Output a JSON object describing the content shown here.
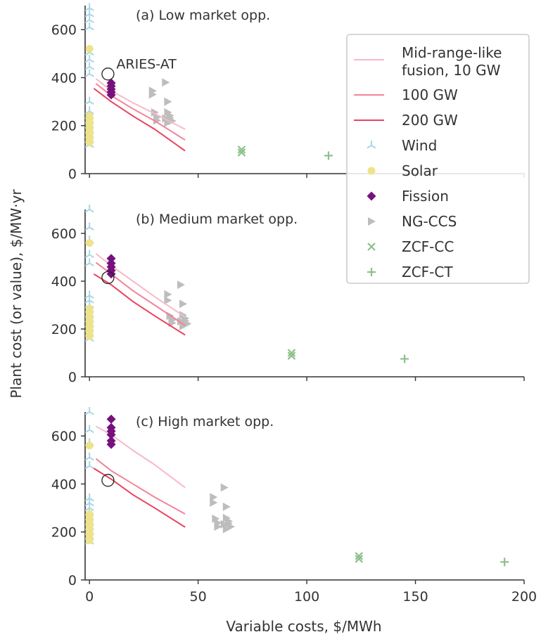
{
  "figure": {
    "ylabel": "Plant cost (or value), $/MW·yr",
    "xlabel": "Variable costs, $/MWh",
    "x_ticks": [
      0,
      50,
      100,
      150,
      200
    ],
    "y_ticks": [
      0,
      200,
      400,
      600
    ],
    "legend": [
      {
        "key": "fusion10",
        "label_lines": [
          "Mid-range-like",
          "fusion, 10 GW"
        ],
        "marker": "line",
        "color": "#f8b9c8"
      },
      {
        "key": "fusion100",
        "label_lines": [
          "100 GW"
        ],
        "marker": "line",
        "color": "#f28499"
      },
      {
        "key": "fusion200",
        "label_lines": [
          "200 GW"
        ],
        "marker": "line",
        "color": "#e8435e"
      },
      {
        "key": "wind",
        "label_lines": [
          "Wind"
        ],
        "marker": "tri",
        "color": "#a8d6e6"
      },
      {
        "key": "solar",
        "label_lines": [
          "Solar"
        ],
        "marker": "circle",
        "color": "#efe38a"
      },
      {
        "key": "fission",
        "label_lines": [
          "Fission"
        ],
        "marker": "diamond",
        "color": "#77117e"
      },
      {
        "key": "ngccs",
        "label_lines": [
          "NG-CCS"
        ],
        "marker": "triright",
        "color": "#bdbdbd"
      },
      {
        "key": "zcfcc",
        "label_lines": [
          "ZCF-CC"
        ],
        "marker": "x",
        "color": "#8cc08a"
      },
      {
        "key": "zcfct",
        "label_lines": [
          "ZCF-CT"
        ],
        "marker": "plus",
        "color": "#8cc08a"
      }
    ]
  },
  "chart_data": [
    {
      "type": "scatter",
      "title": "(a) Low market opp.",
      "xlim": [
        -2,
        200
      ],
      "ylim": [
        0,
        700
      ],
      "annotation": {
        "text": "ARIES-AT",
        "x": 8.5,
        "y": 415
      },
      "fusion_lines": [
        {
          "key": "fusion10",
          "x": [
            3,
            10,
            20,
            30,
            44
          ],
          "y": [
            395,
            345,
            295,
            250,
            185
          ]
        },
        {
          "key": "fusion100",
          "x": [
            3,
            10,
            20,
            30,
            44
          ],
          "y": [
            375,
            325,
            270,
            220,
            140
          ]
        },
        {
          "key": "fusion200",
          "x": [
            2,
            10,
            20,
            30,
            44
          ],
          "y": [
            355,
            300,
            240,
            185,
            95
          ]
        }
      ],
      "markers": {
        "wind": {
          "x": [
            0,
            0,
            0,
            0,
            0,
            0,
            0,
            0,
            0,
            0,
            0,
            0,
            0,
            0,
            0,
            0,
            0
          ],
          "y": [
            690,
            665,
            640,
            610,
            505,
            475,
            445,
            415,
            300,
            260,
            240,
            220,
            200,
            180,
            160,
            140,
            120
          ]
        },
        "solar": {
          "x": [
            0,
            0,
            0,
            0,
            0,
            0,
            0,
            0,
            0,
            0,
            0
          ],
          "y": [
            520,
            240,
            228,
            215,
            203,
            190,
            178,
            165,
            152,
            140,
            130
          ]
        },
        "fission": {
          "x": [
            10,
            10,
            10,
            10,
            10
          ],
          "y": [
            378,
            365,
            352,
            340,
            328
          ]
        },
        "ngccs": {
          "x": [
            29,
            29,
            30,
            31,
            31,
            35,
            36,
            36,
            37,
            37,
            38,
            36,
            35
          ],
          "y": [
            345,
            330,
            255,
            235,
            222,
            380,
            300,
            255,
            242,
            232,
            220,
            212,
            230
          ]
        },
        "zcfcc": {
          "x": [
            70,
            70
          ],
          "y": [
            100,
            88
          ]
        },
        "zcfct": {
          "x": [
            110
          ],
          "y": [
            75
          ]
        }
      }
    },
    {
      "type": "scatter",
      "title": "(b) Medium market opp.",
      "xlim": [
        -2,
        200
      ],
      "ylim": [
        0,
        700
      ],
      "fusion_lines": [
        {
          "key": "fusion10",
          "x": [
            3,
            10,
            20,
            30,
            44
          ],
          "y": [
            515,
            465,
            400,
            335,
            250
          ]
        },
        {
          "key": "fusion100",
          "x": [
            3,
            10,
            20,
            30,
            44
          ],
          "y": [
            478,
            430,
            360,
            300,
            215
          ]
        },
        {
          "key": "fusion200",
          "x": [
            2,
            10,
            20,
            30,
            44
          ],
          "y": [
            430,
            385,
            315,
            255,
            175
          ]
        }
      ],
      "markers": {
        "wind": {
          "x": [
            0,
            0,
            0,
            0,
            0,
            0,
            0,
            0,
            0,
            0,
            0,
            0,
            0,
            0,
            0
          ],
          "y": [
            700,
            625,
            570,
            510,
            475,
            340,
            320,
            300,
            280,
            260,
            240,
            220,
            200,
            180,
            160
          ]
        },
        "solar": {
          "x": [
            0,
            0,
            0,
            0,
            0,
            0,
            0,
            0,
            0,
            0,
            0
          ],
          "y": [
            560,
            285,
            270,
            258,
            245,
            232,
            220,
            208,
            195,
            182,
            170
          ]
        },
        "fission": {
          "x": [
            10,
            10,
            10,
            10,
            10
          ],
          "y": [
            495,
            475,
            460,
            445,
            430
          ]
        },
        "ngccs": {
          "x": [
            36,
            36,
            37,
            38,
            38,
            42,
            43,
            43,
            44,
            44,
            45,
            43,
            42
          ],
          "y": [
            345,
            320,
            255,
            238,
            225,
            385,
            305,
            258,
            245,
            235,
            222,
            212,
            232
          ]
        },
        "zcfcc": {
          "x": [
            93,
            93
          ],
          "y": [
            100,
            88
          ]
        },
        "zcfct": {
          "x": [
            145
          ],
          "y": [
            75
          ]
        }
      }
    },
    {
      "type": "scatter",
      "title": "(c) High market opp.",
      "xlim": [
        -2,
        200
      ],
      "ylim": [
        0,
        700
      ],
      "fusion_lines": [
        {
          "key": "fusion10",
          "x": [
            3,
            10,
            20,
            30,
            44
          ],
          "y": [
            640,
            605,
            540,
            480,
            385
          ]
        },
        {
          "key": "fusion100",
          "x": [
            3,
            10,
            20,
            30,
            44
          ],
          "y": [
            505,
            455,
            400,
            345,
            275
          ]
        },
        {
          "key": "fusion200",
          "x": [
            2,
            10,
            20,
            30,
            44
          ],
          "y": [
            465,
            420,
            355,
            300,
            220
          ]
        }
      ],
      "markers": {
        "wind": {
          "x": [
            0,
            0,
            0,
            0,
            0,
            0,
            0,
            0,
            0,
            0,
            0,
            0,
            0,
            0,
            0
          ],
          "y": [
            700,
            625,
            570,
            510,
            475,
            340,
            320,
            300,
            280,
            260,
            240,
            220,
            200,
            180,
            160
          ]
        },
        "solar": {
          "x": [
            0,
            0,
            0,
            0,
            0,
            0,
            0,
            0,
            0,
            0,
            0
          ],
          "y": [
            560,
            275,
            262,
            250,
            238,
            225,
            212,
            200,
            188,
            175,
            165
          ]
        },
        "fission": {
          "x": [
            10,
            10,
            10,
            10,
            10,
            10
          ],
          "y": [
            670,
            635,
            620,
            605,
            580,
            565
          ]
        },
        "ngccs": {
          "x": [
            57,
            57,
            58,
            59,
            59,
            62,
            63,
            63,
            64,
            64,
            65,
            63,
            62
          ],
          "y": [
            345,
            322,
            255,
            238,
            222,
            385,
            305,
            258,
            245,
            235,
            222,
            212,
            232
          ]
        },
        "zcfcc": {
          "x": [
            124,
            124
          ],
          "y": [
            100,
            88
          ]
        },
        "zcfct": {
          "x": [
            191
          ],
          "y": [
            75
          ]
        }
      }
    }
  ]
}
